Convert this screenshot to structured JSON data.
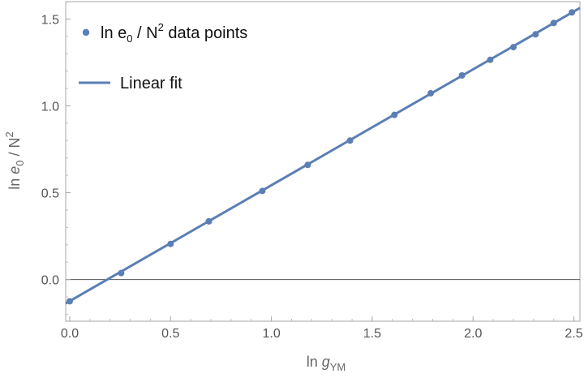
{
  "chart_data": {
    "type": "scatter",
    "title": "",
    "x_axis": {
      "label_main": "ln ",
      "label_var": "g",
      "label_sub": "YM",
      "range": [
        -0.02,
        2.53
      ],
      "ticks": [
        0.0,
        0.5,
        1.0,
        1.5,
        2.0,
        2.5
      ],
      "tick_labels": [
        "0.0",
        "0.5",
        "1.0",
        "1.5",
        "2.0",
        "2.5"
      ]
    },
    "y_axis": {
      "label_main": "ln ",
      "label_var": "e",
      "label_sub": "0",
      "label_rest": " / N",
      "label_sup": "2",
      "range": [
        -0.24,
        1.6
      ],
      "ticks": [
        0.0,
        0.5,
        1.0,
        1.5
      ],
      "tick_labels": [
        "0.0",
        "0.5",
        "1.0",
        "1.5"
      ]
    },
    "series": [
      {
        "name": "ln e0 / N2 data points",
        "type": "scatter",
        "color": "#5b7fb5",
        "x": [
          0.0,
          0.255,
          0.5,
          0.69,
          0.955,
          1.18,
          1.39,
          1.61,
          1.79,
          1.945,
          2.085,
          2.2,
          2.31,
          2.4,
          2.49
        ],
        "y": [
          -0.125,
          0.037,
          0.205,
          0.335,
          0.51,
          0.66,
          0.8,
          0.948,
          1.072,
          1.175,
          1.265,
          1.338,
          1.412,
          1.477,
          1.538
        ]
      },
      {
        "name": "Linear fit",
        "type": "line",
        "color": "#5b7fb5",
        "intercept": -0.124,
        "slope": 0.667,
        "x_range": [
          -0.02,
          2.53
        ]
      }
    ],
    "legend": {
      "placement": "top-left",
      "entries": [
        {
          "text_main": "ln e",
          "text_sub": "0",
          "text_mid": " / N",
          "text_sup": "2",
          "text_tail": " data points"
        },
        {
          "text_main": "Linear fit"
        }
      ]
    },
    "zero_line": true,
    "grid": false,
    "frame_color": "#a6a6a6",
    "zero_line_color": "#555555"
  }
}
